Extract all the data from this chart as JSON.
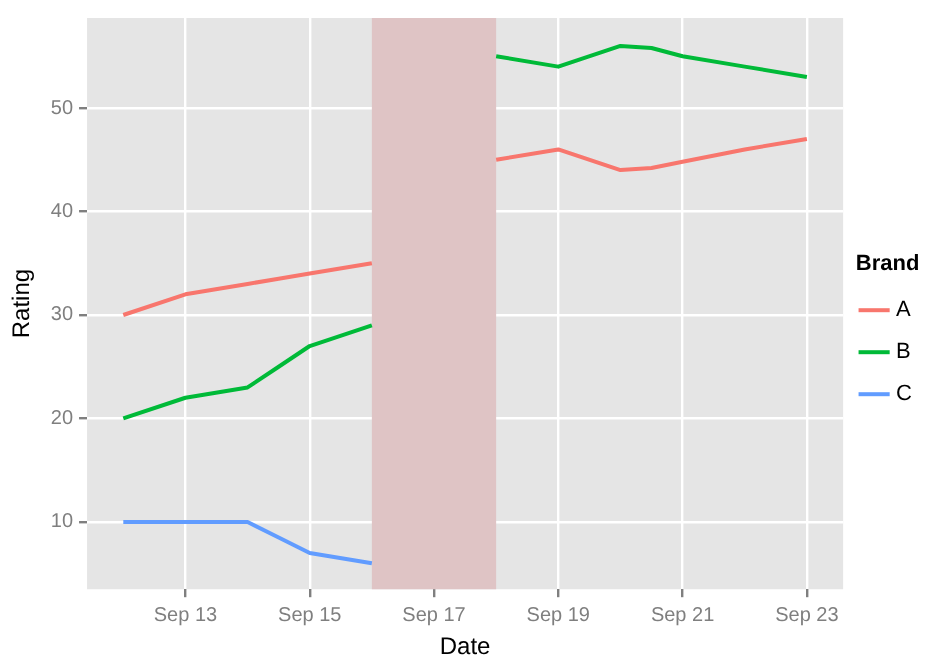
{
  "chart_data": {
    "type": "line",
    "xlabel": "Date",
    "ylabel": "Rating",
    "legend_title": "Brand",
    "x": [
      "--09-12",
      "--09-13",
      "--09-14",
      "--09-14T12:00",
      "--09-15",
      "--09-16",
      "--09-17",
      "--09-18",
      "--09-19",
      "--09-20",
      "--09-20T12:00",
      "--09-21",
      "--09-22",
      "--09-23"
    ],
    "series": [
      {
        "name": "A",
        "color": "#f8766d",
        "values": [
          30,
          32,
          33,
          33.5,
          34,
          35,
          null,
          45,
          46,
          44,
          44.2,
          44.8,
          46,
          47
        ]
      },
      {
        "name": "B",
        "color": "#00ba38",
        "values": [
          20,
          22,
          23,
          25,
          27,
          29,
          null,
          55,
          54,
          56,
          55.8,
          55,
          54,
          53
        ]
      },
      {
        "name": "C",
        "color": "#619cff",
        "values": [
          10,
          10,
          10,
          8.5,
          7,
          6,
          null,
          null,
          null,
          null,
          null,
          null,
          null,
          null
        ]
      }
    ],
    "xlim": [
      "--09-11T10:00",
      "--09-23T14:00"
    ],
    "xticks": [
      {
        "value": "--09-13",
        "label": "Sep 13"
      },
      {
        "value": "--09-15",
        "label": "Sep 15"
      },
      {
        "value": "--09-17",
        "label": "Sep 17"
      },
      {
        "value": "--09-19",
        "label": "Sep 19"
      },
      {
        "value": "--09-21",
        "label": "Sep 21"
      },
      {
        "value": "--09-23",
        "label": "Sep 23"
      }
    ],
    "ylim": [
      3.5,
      58.7
    ],
    "yticks": [
      10,
      20,
      30,
      40,
      50
    ],
    "bands": [
      {
        "axis": "x",
        "from": "--09-16",
        "to": "--09-18",
        "color": "#dfc4c5"
      }
    ],
    "grid": true,
    "legend": "right",
    "line_style": "solid",
    "marker": "none"
  }
}
